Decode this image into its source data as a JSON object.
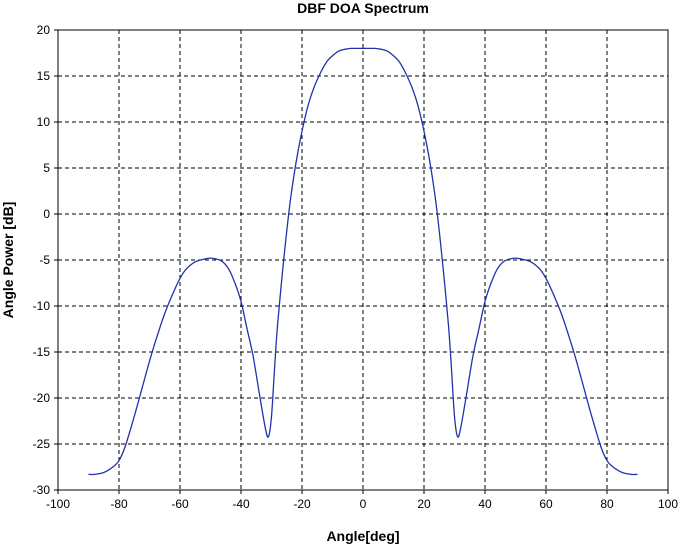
{
  "chart_data": {
    "type": "line",
    "title": "DBF DOA Spectrum",
    "xlabel": "Angle[deg]",
    "ylabel": "Angle Power [dB]",
    "xlim": [
      -100,
      100
    ],
    "ylim": [
      -30,
      20
    ],
    "xticks": [
      -100,
      -80,
      -60,
      -40,
      -20,
      0,
      20,
      40,
      60,
      80,
      100
    ],
    "yticks": [
      20,
      15,
      10,
      5,
      0,
      -5,
      -10,
      -15,
      -20,
      -25,
      -30
    ],
    "grid": true,
    "grid_style": "dashed",
    "legend": null,
    "line_color": "#2233aa",
    "series": [
      {
        "x": [
          -90,
          -88,
          -85,
          -82,
          -80,
          -78,
          -75,
          -72,
          -70,
          -68,
          -65,
          -62,
          -60,
          -58,
          -55,
          -52,
          -50,
          -48,
          -46,
          -44,
          -42,
          -40,
          -38,
          -36,
          -34,
          -32,
          -31,
          -30,
          -29,
          -28,
          -26,
          -24,
          -22,
          -20,
          -18,
          -16,
          -14,
          -12,
          -10,
          -8,
          -6,
          -4,
          -2,
          0,
          2,
          4,
          6,
          8,
          10,
          12,
          14,
          16,
          18,
          20,
          22,
          24,
          26,
          28,
          29,
          30,
          31,
          32,
          34,
          36,
          38,
          40,
          42,
          44,
          46,
          48,
          50,
          52,
          55,
          58,
          60,
          62,
          65,
          68,
          70,
          72,
          75,
          78,
          80,
          82,
          85,
          88,
          90
        ],
        "y": [
          -28.3,
          -28.3,
          -28.1,
          -27.5,
          -26.8,
          -25.3,
          -22.0,
          -18.4,
          -16.0,
          -13.8,
          -10.8,
          -8.4,
          -7.0,
          -6.0,
          -5.2,
          -4.9,
          -4.8,
          -4.9,
          -5.2,
          -6.0,
          -7.5,
          -9.5,
          -12.5,
          -15.5,
          -19.5,
          -23.3,
          -24.2,
          -22.0,
          -16.8,
          -12.0,
          -5.0,
          1.0,
          5.5,
          9.0,
          11.8,
          13.8,
          15.3,
          16.5,
          17.2,
          17.7,
          17.9,
          18.0,
          18.0,
          18.0,
          18.0,
          18.0,
          17.9,
          17.7,
          17.2,
          16.5,
          15.3,
          13.8,
          11.8,
          9.0,
          5.5,
          1.0,
          -5.0,
          -12.0,
          -16.8,
          -22.0,
          -24.2,
          -23.3,
          -19.5,
          -15.5,
          -12.5,
          -9.5,
          -7.5,
          -6.0,
          -5.2,
          -4.9,
          -4.8,
          -4.9,
          -5.2,
          -6.0,
          -7.0,
          -8.4,
          -10.8,
          -13.8,
          -16.0,
          -18.4,
          -22.0,
          -25.3,
          -26.8,
          -27.5,
          -28.1,
          -28.3,
          -28.3
        ]
      }
    ]
  }
}
